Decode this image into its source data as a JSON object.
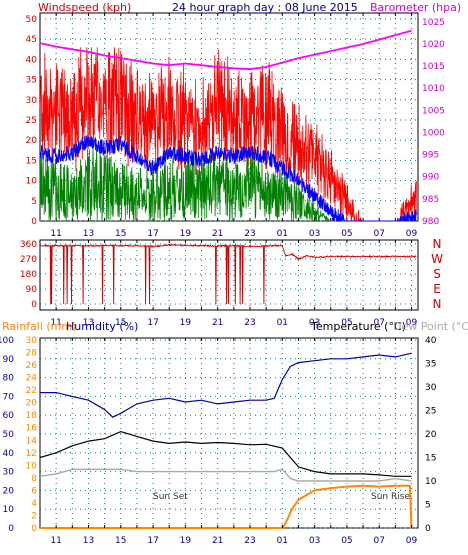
{
  "title": "24 hour graph day : 08 June 2015",
  "colors": {
    "wind_speed": "#ff0000",
    "wind_avg": "#0000ff",
    "wind_gust": "#008000",
    "barometer": "#ff00ff",
    "direction": "#cc0000",
    "temperature": "#000000",
    "humidity": "#0000aa",
    "dewpoint": "#aaaaaa",
    "rainfall": "#ff8800",
    "grid": "#008080",
    "axis_left": "#cc0000",
    "axis_right": "#cc00cc",
    "axis_blue": "#0000aa"
  },
  "chart_data": [
    {
      "type": "line",
      "title": "24 hour graph day : 08 June 2015",
      "left_label": "Windspeed (kph)",
      "right_label": "Barometer (hpa)",
      "x_ticks": [
        "11",
        "13",
        "15",
        "17",
        "19",
        "21",
        "23",
        "01",
        "03",
        "05",
        "07",
        "09"
      ],
      "y_left_ticks": [
        0,
        5,
        10,
        15,
        20,
        25,
        30,
        35,
        40,
        45,
        50
      ],
      "y_left_range": [
        0,
        50
      ],
      "y_right_ticks": [
        980,
        985,
        990,
        995,
        1000,
        1005,
        1010,
        1015,
        1020,
        1025
      ],
      "y_right_range": [
        980,
        1027
      ],
      "grid": true,
      "series": [
        {
          "key": "wind_max",
          "x": [
            10,
            11,
            12,
            13,
            14,
            15,
            16,
            17,
            18,
            19,
            20,
            21,
            22,
            23,
            24,
            25,
            26,
            27,
            28,
            29,
            30,
            30.5,
            31,
            32,
            33
          ],
          "values": [
            35,
            33,
            32,
            36,
            34,
            35,
            30,
            28,
            33,
            30,
            29,
            34,
            33,
            30,
            32,
            28,
            24,
            20,
            15,
            8,
            0,
            0,
            0,
            0,
            9
          ]
        },
        {
          "key": "wind_avg",
          "x": [
            10,
            11,
            12,
            13,
            14,
            15,
            16,
            17,
            18,
            19,
            20,
            21,
            22,
            23,
            24,
            25,
            26,
            27,
            28,
            29,
            30,
            31,
            32,
            33
          ],
          "values": [
            17,
            16,
            17,
            20,
            18,
            19,
            16,
            13,
            17,
            16,
            15,
            17,
            16,
            17,
            16,
            13,
            10,
            6,
            2,
            0,
            0,
            0,
            0,
            1
          ]
        },
        {
          "key": "wind_gust",
          "x": [
            10,
            11,
            12,
            13,
            14,
            15,
            16,
            17,
            18,
            19,
            20,
            21,
            22,
            23,
            24,
            25,
            26,
            27,
            28,
            29,
            30,
            31,
            32,
            33
          ],
          "values": [
            8,
            7,
            6,
            9,
            8,
            7,
            6,
            6,
            7,
            8,
            7,
            8,
            7,
            8,
            7,
            6,
            4,
            2,
            0,
            0,
            0,
            0,
            0,
            0
          ]
        },
        {
          "key": "barometer",
          "x": [
            10,
            11,
            12,
            13,
            14,
            15,
            16,
            17,
            18,
            19,
            20,
            21,
            22,
            23,
            24,
            25,
            26,
            27,
            28,
            29,
            30,
            31,
            32,
            33
          ],
          "values": [
            1020.2,
            1019.4,
            1018.8,
            1018.2,
            1017.4,
            1016.8,
            1016.2,
            1015.6,
            1015.2,
            1015.6,
            1015.2,
            1014.8,
            1014.5,
            1014.3,
            1014.8,
            1015.8,
            1016.8,
            1017.6,
            1018.4,
            1019.2,
            1020.0,
            1021.0,
            1022.0,
            1023.0
          ]
        }
      ]
    },
    {
      "type": "line",
      "x_ticks": [
        "11",
        "13",
        "15",
        "17",
        "19",
        "21",
        "23",
        "01",
        "03",
        "05",
        "07",
        "09"
      ],
      "y_ticks": [
        0,
        90,
        180,
        270,
        360
      ],
      "y_range": [
        0,
        360
      ],
      "compass_labels": [
        "N",
        "W",
        "S",
        "E",
        "N"
      ],
      "series": [
        {
          "key": "direction",
          "x": [
            10,
            16,
            17,
            18,
            19,
            20,
            21,
            22,
            23,
            24,
            25,
            25.2,
            25.6,
            26,
            26.5,
            27,
            28,
            29,
            30,
            31,
            32,
            33
          ],
          "values": [
            350,
            350,
            345,
            355,
            352,
            350,
            348,
            350,
            345,
            348,
            350,
            290,
            300,
            270,
            290,
            280,
            285,
            285,
            285,
            285,
            285,
            285
          ]
        }
      ]
    },
    {
      "type": "line",
      "left_label_1": "Rainfall (mm)",
      "left_label_2": "Humidity (%)",
      "right_label_1": "Temperature (°C)",
      "right_label_2": "Dew Point (°C)",
      "annotations": [
        "Sun Set",
        "Sun Rise"
      ],
      "x_ticks": [
        "11",
        "13",
        "15",
        "17",
        "19",
        "21",
        "23",
        "01",
        "03",
        "05",
        "07",
        "09"
      ],
      "y_humidity_ticks": [
        0,
        10,
        20,
        30,
        40,
        50,
        60,
        70,
        80,
        90,
        100
      ],
      "y_rain_ticks": [
        0,
        2,
        4,
        6,
        8,
        10,
        12,
        14,
        16,
        18,
        20,
        22,
        24,
        26,
        28,
        30
      ],
      "y_temp_ticks": [
        0,
        5,
        10,
        15,
        20,
        25,
        30,
        35,
        40
      ],
      "y_temp_range": [
        0,
        40
      ],
      "series": [
        {
          "key": "humidity",
          "x": [
            10,
            11,
            12,
            13,
            14,
            14.5,
            15,
            16,
            17,
            18,
            19,
            20,
            21,
            22,
            23,
            24,
            24.5,
            25,
            25.5,
            26,
            27,
            28,
            29,
            30,
            31,
            32,
            33
          ],
          "values": [
            72,
            72,
            70,
            68,
            63,
            59,
            61,
            66,
            68,
            69,
            67,
            68,
            66,
            67,
            68,
            68,
            69,
            79,
            86,
            88,
            89,
            90,
            90,
            91,
            92,
            91,
            93
          ]
        },
        {
          "key": "temperature",
          "x": [
            10,
            11,
            12,
            13,
            14,
            15,
            16,
            17,
            18,
            19,
            20,
            21,
            22,
            23,
            24,
            25,
            25.5,
            26,
            27,
            28,
            29,
            30,
            31,
            32,
            33
          ],
          "values": [
            15,
            16,
            17.5,
            18.5,
            19,
            20.5,
            19.5,
            18.5,
            18,
            18.3,
            18,
            18.2,
            18,
            17.7,
            17.8,
            17,
            15,
            13,
            12,
            11.5,
            11.5,
            11.5,
            11.3,
            11,
            11
          ]
        },
        {
          "key": "dewpoint",
          "x": [
            10,
            11,
            12,
            13,
            14,
            15,
            16,
            17,
            18,
            19,
            20,
            21,
            22,
            23,
            24,
            24.5,
            25,
            25.5,
            26,
            27,
            28,
            29,
            30,
            31,
            32,
            33
          ],
          "values": [
            11,
            11.5,
            12.5,
            12.5,
            12.5,
            12.5,
            12,
            12,
            12,
            12,
            12,
            12,
            12,
            12,
            12,
            12,
            12.5,
            10.5,
            10,
            10,
            10,
            10,
            10,
            10,
            10.5,
            10
          ]
        },
        {
          "key": "rainfall",
          "x": [
            10,
            25,
            25.2,
            25.6,
            26,
            26.5,
            27,
            28,
            29,
            30,
            31,
            32,
            32.9,
            33
          ],
          "values": [
            0,
            0,
            1,
            4,
            6,
            7,
            8,
            8.5,
            8.8,
            9,
            8.8,
            9,
            9,
            0
          ]
        }
      ]
    }
  ]
}
